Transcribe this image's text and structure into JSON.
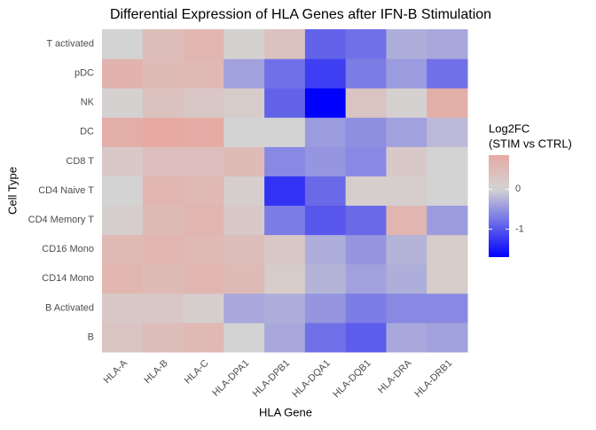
{
  "chart_data": {
    "type": "heatmap",
    "title": "Differential Expression of HLA Genes after IFN-B Stimulation",
    "x_label": "HLA Gene",
    "y_label": "Cell Type",
    "legend_title": [
      "Log2FC",
      "(STIM vs CTRL)"
    ],
    "x_categories": [
      "HLA-A",
      "HLA-B",
      "HLA-C",
      "HLA-DPA1",
      "HLA-DPB1",
      "HLA-DQA1",
      "HLA-DQB1",
      "HLA-DRA",
      "HLA-DRB1"
    ],
    "y_categories": [
      "B",
      "B Activated",
      "CD14 Mono",
      "CD16 Mono",
      "CD4 Memory T",
      "CD4 Naive T",
      "CD8 T",
      "DC",
      "NK",
      "pDC",
      "T activated"
    ],
    "values": [
      [
        0.3,
        0.45,
        0.55,
        0.0,
        -0.35,
        -0.8,
        -0.95,
        -0.35,
        -0.4
      ],
      [
        0.2,
        0.25,
        0.1,
        -0.35,
        -0.3,
        -0.5,
        -0.7,
        -0.6,
        -0.6
      ],
      [
        0.6,
        0.5,
        0.6,
        0.5,
        0.15,
        -0.25,
        -0.4,
        -0.3,
        0.15
      ],
      [
        0.55,
        0.6,
        0.55,
        0.45,
        0.25,
        -0.3,
        -0.5,
        -0.25,
        0.15
      ],
      [
        0.1,
        0.5,
        0.6,
        0.2,
        -0.7,
        -1.0,
        -0.85,
        0.6,
        -0.45
      ],
      [
        0.0,
        0.6,
        0.55,
        0.1,
        -1.3,
        -0.85,
        0.1,
        0.1,
        0.0
      ],
      [
        0.2,
        0.4,
        0.4,
        0.5,
        -0.6,
        -0.5,
        -0.6,
        0.2,
        0.0
      ],
      [
        0.75,
        0.85,
        0.8,
        0.0,
        0.0,
        -0.45,
        -0.55,
        -0.4,
        -0.2
      ],
      [
        0.05,
        0.35,
        0.25,
        0.15,
        -0.9,
        -1.7,
        0.3,
        0.05,
        0.75
      ],
      [
        0.65,
        0.5,
        0.55,
        -0.4,
        -0.8,
        -1.2,
        -0.7,
        -0.45,
        -0.8
      ],
      [
        0.0,
        0.45,
        0.6,
        0.05,
        0.35,
        -0.9,
        -0.8,
        -0.3,
        -0.35
      ]
    ],
    "color_low": "#0000ff",
    "color_mid": "#d3d3d3",
    "color_high": "#fa8072",
    "legend_ticks": [
      -1,
      0
    ]
  }
}
